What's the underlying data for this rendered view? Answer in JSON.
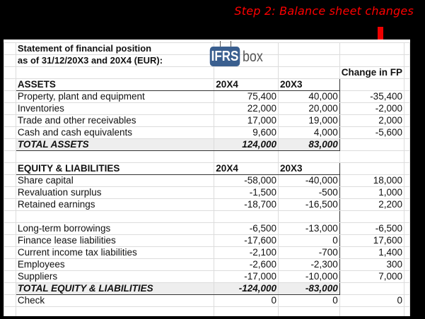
{
  "banner": "Step 2: Balance sheet changes",
  "title_line1": "Statement of financial position",
  "title_line2": " as of 31/12/20X3 and 20X4 (EUR):",
  "logo": {
    "part1": "IFRS",
    "part2": "box"
  },
  "change_header": "Change in FP",
  "accent_color": "#ff0000",
  "assets": {
    "header": [
      "ASSETS",
      "20X4",
      "20X3"
    ],
    "rows": [
      [
        "Property, plant and equipment",
        "75,400",
        "40,000",
        "-35,400"
      ],
      [
        "Inventories",
        "22,000",
        "20,000",
        "-2,000"
      ],
      [
        "Trade and other receivables",
        "17,000",
        "19,000",
        "2,000"
      ],
      [
        "Cash and cash equivalents",
        "9,600",
        "4,000",
        "-5,600"
      ]
    ],
    "total": [
      "TOTAL ASSETS",
      "124,000",
      "83,000"
    ]
  },
  "equity": {
    "header": [
      "EQUITY & LIABILITIES",
      "20X4",
      "20X3"
    ],
    "rows": [
      [
        "Share capital",
        "-58,000",
        "-40,000",
        "18,000"
      ],
      [
        "Revaluation surplus",
        "-1,500",
        "-500",
        "1,000"
      ],
      [
        "Retained earnings",
        "-18,700",
        "-16,500",
        "2,200"
      ],
      [
        "",
        "",
        "",
        ""
      ],
      [
        "Long-term borrowings",
        "-6,500",
        "-13,000",
        "-6,500"
      ],
      [
        "Finance lease liabilities",
        "-17,600",
        "0",
        "17,600"
      ],
      [
        "Current income tax liabilities",
        "-2,100",
        "-700",
        "1,400"
      ],
      [
        "Employees",
        "-2,600",
        "-2,300",
        "300"
      ],
      [
        "Suppliers",
        "-17,000",
        "-10,000",
        "7,000"
      ]
    ],
    "total": [
      "TOTAL EQUITY & LIABILITIES",
      "-124,000",
      "-83,000"
    ]
  },
  "check": [
    "Check",
    "0",
    "0",
    "0"
  ]
}
